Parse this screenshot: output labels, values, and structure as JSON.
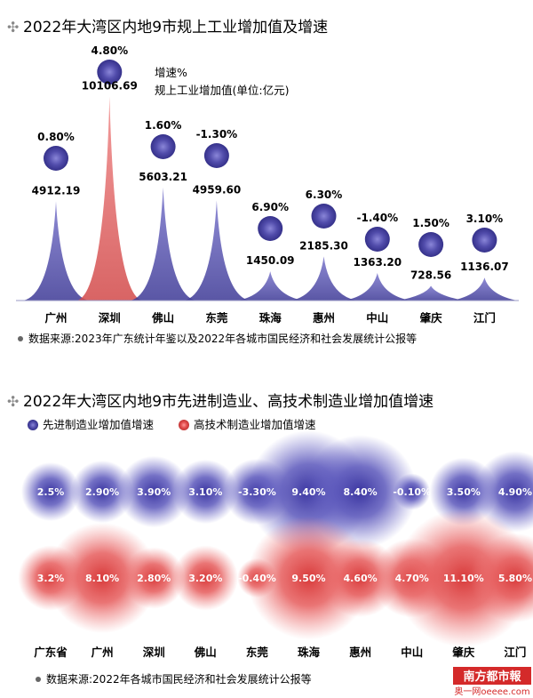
{
  "chart_data": [
    {
      "type": "area",
      "title": "2022年大湾区内地9市规上工业增加值及增速",
      "legend": [
        "增速%",
        "规上工业增加值(单位:亿元)"
      ],
      "categories": [
        "广州",
        "深圳",
        "佛山",
        "东莞",
        "珠海",
        "惠州",
        "中山",
        "肇庆",
        "江门"
      ],
      "series": [
        {
          "name": "规上工业增加值(单位:亿元)",
          "values": [
            4912.19,
            10106.69,
            5603.21,
            4959.6,
            1450.09,
            2185.3,
            1363.2,
            728.56,
            1136.07
          ],
          "labels": [
            "4912.19",
            "10106.69",
            "5603.21",
            "4959.60",
            "1450.09",
            "2185.30",
            "1363.20",
            "728.56",
            "1136.07"
          ]
        },
        {
          "name": "增速%",
          "values": [
            0.8,
            4.8,
            1.6,
            -1.3,
            6.9,
            6.3,
            -1.4,
            1.5,
            3.1
          ],
          "labels": [
            "0.80%",
            "4.80%",
            "1.60%",
            "-1.30%",
            "6.90%",
            "6.30%",
            "-1.40%",
            "1.50%",
            "3.10%"
          ]
        }
      ],
      "highlight_color": "#e06a6a",
      "base_color": "#5a56b0",
      "source": "数据来源:2023年广东统计年鉴以及2022年各城市国民经济和社会发展统计公报等"
    },
    {
      "type": "scatter",
      "title": "2022年大湾区内地9市先进制造业、高技术制造业增加值增速",
      "categories": [
        "广东省",
        "广州",
        "深圳",
        "佛山",
        "东莞",
        "珠海",
        "惠州",
        "中山",
        "肇庆",
        "江门"
      ],
      "series": [
        {
          "name": "先进制造业增加值增速",
          "color": "#4a45a8",
          "values": [
            2.5,
            2.9,
            3.9,
            3.1,
            -3.3,
            9.4,
            8.4,
            -0.1,
            3.5,
            4.9
          ],
          "labels": [
            "2.5%",
            "2.90%",
            "3.90%",
            "3.10%",
            "-3.30%",
            "9.40%",
            "8.40%",
            "-0.10%",
            "3.50%",
            "4.90%"
          ]
        },
        {
          "name": "高技术制造业增加值增速",
          "color": "#de4b4b",
          "values": [
            3.2,
            8.1,
            2.8,
            3.2,
            -0.4,
            9.5,
            4.6,
            4.7,
            11.1,
            5.8
          ],
          "labels": [
            "3.2%",
            "8.10%",
            "2.80%",
            "3.20%",
            "-0.40%",
            "9.50%",
            "4.60%",
            "4.70%",
            "11.10%",
            "5.80%"
          ]
        }
      ],
      "source": "数据来源:2022年各城市国民经济和社会发展统计公报等"
    }
  ],
  "watermark": {
    "logo": "南方都市報",
    "site": "奥一网oeeee.com"
  }
}
